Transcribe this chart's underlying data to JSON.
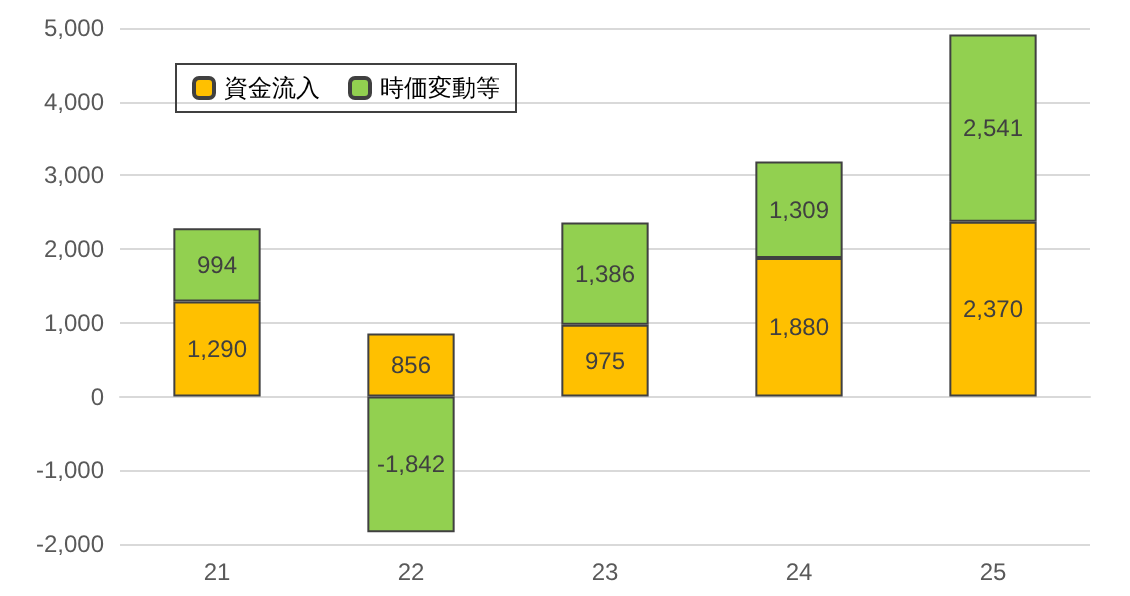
{
  "chart_data": {
    "type": "bar",
    "stacked": true,
    "categories": [
      "21",
      "22",
      "23",
      "24",
      "25"
    ],
    "series": [
      {
        "name": "資金流入",
        "color": "#ffc000",
        "values": [
          1290,
          856,
          975,
          1880,
          2370
        ],
        "value_labels": [
          "1,290",
          "856",
          "975",
          "1,880",
          "2,370"
        ]
      },
      {
        "name": "時価変動等",
        "color": "#92d050",
        "values": [
          994,
          -1842,
          1386,
          1309,
          2541
        ],
        "value_labels": [
          "994",
          "-1,842",
          "1,386",
          "1,309",
          "2,541"
        ]
      }
    ],
    "ylim": [
      -2000,
      5000
    ],
    "yticks": [
      {
        "value": -2000,
        "label": "-2,000"
      },
      {
        "value": -1000,
        "label": "-1,000"
      },
      0,
      {
        "value": 1000,
        "label": "1,000"
      },
      {
        "value": 2000,
        "label": "2,000"
      },
      {
        "value": 3000,
        "label": "3,000"
      },
      {
        "value": 4000,
        "label": "4,000"
      },
      {
        "value": 5000,
        "label": "5,000"
      }
    ],
    "grid": "y",
    "legend": "top left"
  }
}
